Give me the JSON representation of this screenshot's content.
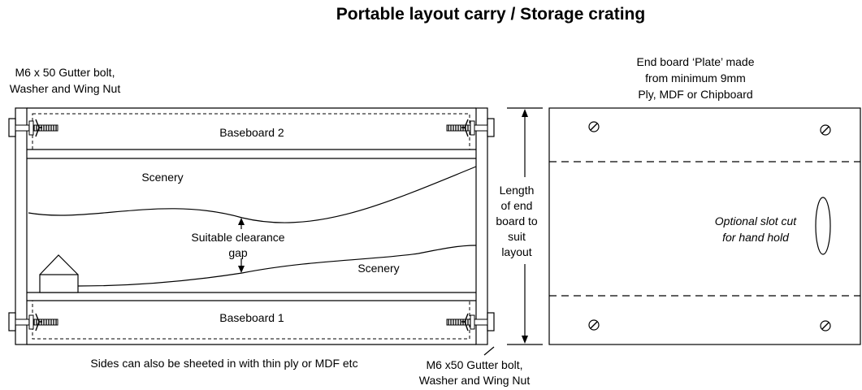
{
  "title": "Portable layout carry / Storage crating",
  "labels": {
    "top_bolt": [
      "M6 x 50 Gutter bolt,",
      "Washer and Wing Nut"
    ],
    "bottom_bolt": [
      "M6 x50 Gutter bolt,",
      "Washer and Wing Nut"
    ],
    "baseboard_2": "Baseboard 2",
    "baseboard_1": "Baseboard 1",
    "scenery_top": "Scenery",
    "scenery_bottom": "Scenery",
    "clearance": [
      "Suitable clearance",
      "gap"
    ],
    "length_note": [
      "Length",
      "of end",
      "board to",
      "suit",
      "layout"
    ],
    "sides_note": "Sides can also be sheeted in with thin ply or MDF etc",
    "end_plate": [
      "End board ‘Plate’ made",
      "from minimum 9mm",
      "Ply, MDF or Chipboard"
    ],
    "slot": [
      "Optional slot cut",
      "for hand hold"
    ]
  }
}
